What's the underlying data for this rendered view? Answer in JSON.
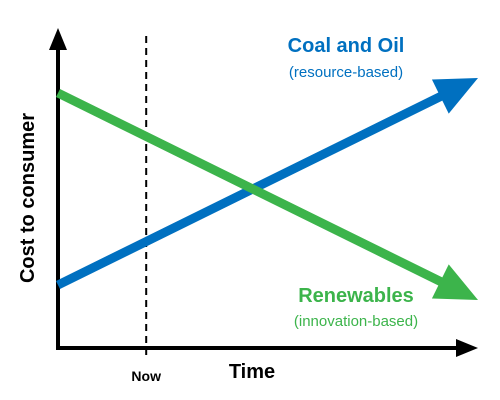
{
  "chart_data": {
    "type": "line",
    "xlabel": "Time",
    "ylabel": "Cost to consumer",
    "x_tick_labels": [
      "Now"
    ],
    "xlim": [
      0,
      10
    ],
    "ylim": [
      0,
      10
    ],
    "grid": false,
    "marker": {
      "label": "Now",
      "x": 2.1,
      "style": "dashed"
    },
    "series": [
      {
        "name": "Coal and Oil",
        "subtitle": "(resource-based)",
        "color": "#0070c0",
        "x": [
          0,
          10
        ],
        "y": [
          2.1,
          9.0
        ]
      },
      {
        "name": "Renewables",
        "subtitle": "(innovation-based)",
        "color": "#3cb44b",
        "x": [
          0,
          10
        ],
        "y": [
          8.5,
          1.6
        ]
      }
    ]
  }
}
